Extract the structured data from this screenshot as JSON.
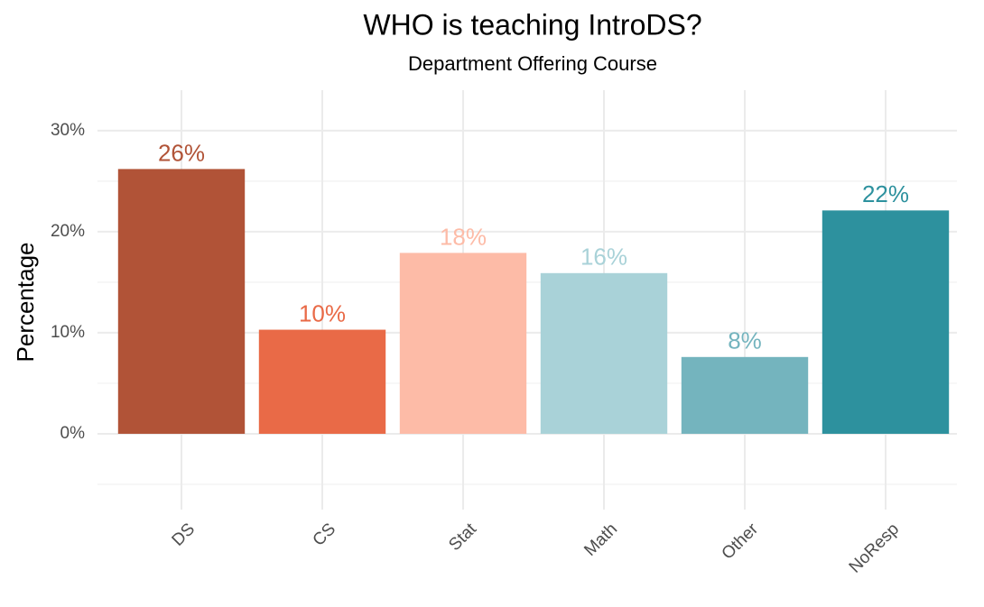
{
  "chart_data": {
    "type": "bar",
    "title": "WHO is teaching IntroDS?",
    "subtitle": "Department Offering Course",
    "y_label": "Percentage",
    "categories": [
      "DS",
      "CS",
      "Stat",
      "Math",
      "Other",
      "NoResp"
    ],
    "values": [
      26.2,
      10.3,
      17.9,
      15.9,
      7.6,
      22.1
    ],
    "value_labels": [
      "26%",
      "10%",
      "18%",
      "16%",
      "8%",
      "22%"
    ],
    "colors": [
      "#b15337",
      "#e96a47",
      "#fdbba7",
      "#a9d2d8",
      "#74b4be",
      "#2d919e"
    ],
    "ylim": [
      -7.5,
      34
    ],
    "yticks": [
      {
        "value": 0,
        "label": "0%"
      },
      {
        "value": 10,
        "label": "10%"
      },
      {
        "value": 20,
        "label": "20%"
      },
      {
        "value": 30,
        "label": "30%"
      }
    ],
    "minor_yticks": [
      -5,
      5,
      15,
      25
    ],
    "grid": true
  }
}
